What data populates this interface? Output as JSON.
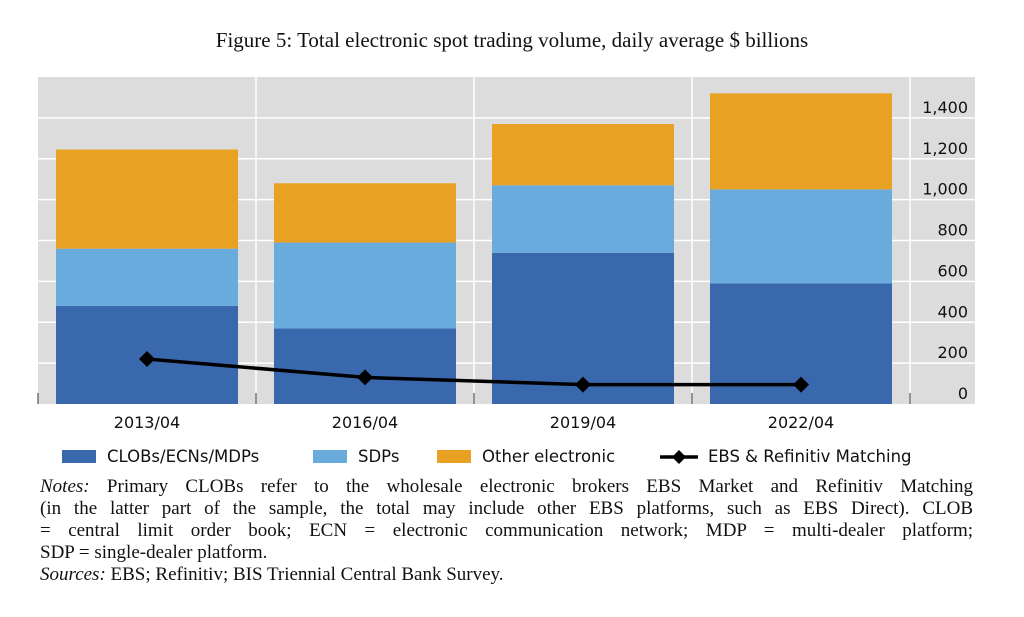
{
  "chart_data": {
    "type": "bar",
    "stacked": true,
    "title": "Figure 5: Total electronic spot trading volume, daily average $ billions",
    "categories": [
      "2013/04",
      "2016/04",
      "2019/04",
      "2022/04"
    ],
    "series": [
      {
        "name": "CLOBs/ECNs/MDPs",
        "type": "bar",
        "color": "#3a68ad",
        "values": [
          480,
          370,
          740,
          590
        ]
      },
      {
        "name": "SDPs",
        "type": "bar",
        "color": "#6aabde",
        "values": [
          280,
          420,
          330,
          460
        ]
      },
      {
        "name": "Other electronic",
        "type": "bar",
        "color": "#e8a123",
        "values": [
          485,
          290,
          300,
          470
        ]
      },
      {
        "name": "EBS & Refinitiv Matching",
        "type": "line",
        "color": "#000000",
        "marker": "diamond",
        "values": [
          220,
          130,
          95,
          95
        ]
      }
    ],
    "y_axis": {
      "position": "right",
      "ylim": [
        0,
        1600
      ],
      "ticks": [
        0,
        200,
        400,
        600,
        800,
        1000,
        1200,
        1400
      ],
      "tick_labels": [
        "0",
        "200",
        "400",
        "600",
        "800",
        "1,000",
        "1,200",
        "1,400"
      ]
    },
    "xlabel": "",
    "ylabel": "",
    "grid": true,
    "background": "#dcdcdc",
    "legend": "bottom"
  },
  "notes": {
    "label": "Notes:",
    "lines": [
      "Primary CLOBs refer to the wholesale electronic brokers EBS Market and Refinitiv Matching",
      "(in the latter part of the sample, the total may include other EBS platforms, such as EBS Direct). CLOB",
      "= central limit order book; ECN = electronic communication network; MDP = multi-dealer platform;",
      "SDP = single-dealer platform."
    ]
  },
  "sources": {
    "label": "Sources:",
    "text": "EBS; Refinitiv; BIS Triennial Central Bank Survey."
  }
}
